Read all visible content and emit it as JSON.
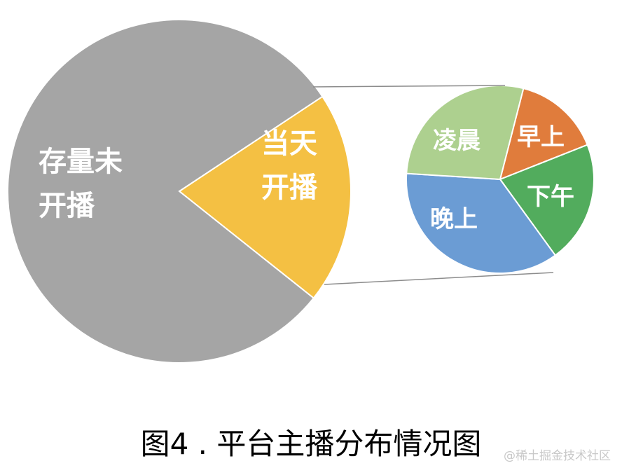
{
  "chart_data": {
    "type": "pie",
    "subtype": "pie-of-pie",
    "title": "图4 . 平台主播分布情况图",
    "main_pie": {
      "slices": [
        {
          "label": "存量未开播",
          "value": 80,
          "color": "#a5a5a5"
        },
        {
          "label": "当天开播",
          "value": 20,
          "color": "#f4c043"
        }
      ]
    },
    "secondary_pie": {
      "breakdown_of": "当天开播",
      "slices": [
        {
          "label": "早上",
          "value": 15,
          "color": "#e07c3c"
        },
        {
          "label": "下午",
          "value": 21,
          "color": "#52ac5d"
        },
        {
          "label": "晚上",
          "value": 36,
          "color": "#6b9cd4"
        },
        {
          "label": "凌晨",
          "value": 28,
          "color": "#add08f"
        }
      ]
    },
    "legend": "none",
    "data_labels": "inside"
  },
  "watermark": "@稀土掘金技术社区"
}
